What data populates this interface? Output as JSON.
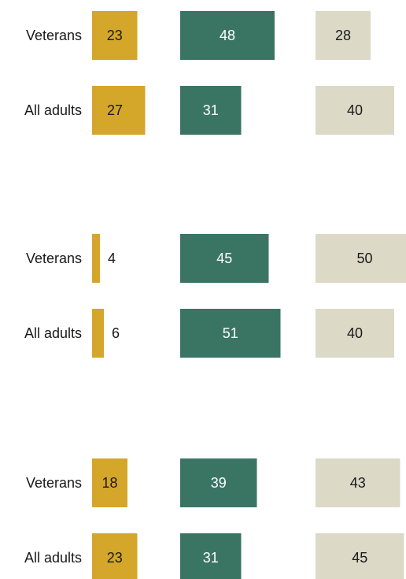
{
  "chart_data": {
    "type": "bar",
    "colors": {
      "series1": "#D4A62A",
      "series2": "#3A7563",
      "series3": "#DCD9C7",
      "label_dark": "#1a1a1a",
      "label_light": "#ffffff"
    },
    "groups": [
      {
        "rows": [
          {
            "label": "Veterans",
            "values": [
              23,
              48,
              28
            ]
          },
          {
            "label": "All adults",
            "values": [
              27,
              31,
              40
            ]
          }
        ]
      },
      {
        "rows": [
          {
            "label": "Veterans",
            "values": [
              4,
              45,
              50
            ]
          },
          {
            "label": "All adults",
            "values": [
              6,
              51,
              40
            ]
          }
        ]
      },
      {
        "rows": [
          {
            "label": "Veterans",
            "values": [
              18,
              39,
              43
            ]
          },
          {
            "label": "All adults",
            "values": [
              23,
              31,
              45
            ]
          }
        ]
      }
    ]
  }
}
